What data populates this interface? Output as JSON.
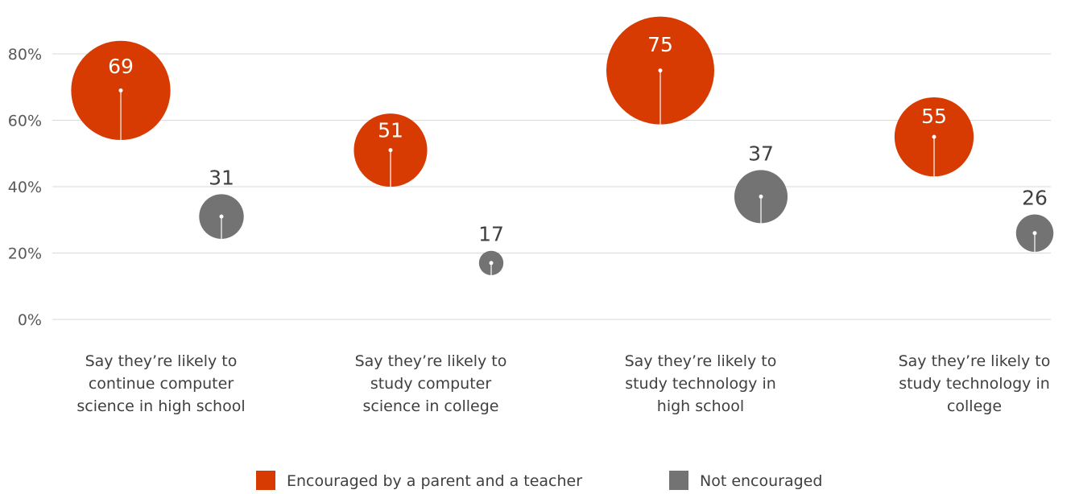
{
  "chart_data": {
    "type": "bubble",
    "title": "",
    "xlabel": "",
    "ylabel": "",
    "ylim": [
      0,
      80
    ],
    "yticks": [
      0,
      20,
      40,
      60,
      80
    ],
    "ytick_labels": [
      "0%",
      "20%",
      "40%",
      "60%",
      "80%"
    ],
    "grid": true,
    "legend_position": "bottom",
    "categories": [
      [
        "Say they’re likely to",
        "continue computer",
        "science in high school"
      ],
      [
        "Say they’re likely to",
        "study computer",
        "science in college"
      ],
      [
        "Say they’re likely to",
        "study technology in",
        "high school"
      ],
      [
        "Say they’re likely to",
        "study technology in",
        "college"
      ]
    ],
    "series": [
      {
        "name": "Encouraged by a parent and a teacher",
        "color": "#D83B01",
        "values": [
          69,
          51,
          75,
          55
        ]
      },
      {
        "name": "Not encouraged",
        "color": "#737373",
        "values": [
          31,
          17,
          37,
          26
        ]
      }
    ]
  }
}
